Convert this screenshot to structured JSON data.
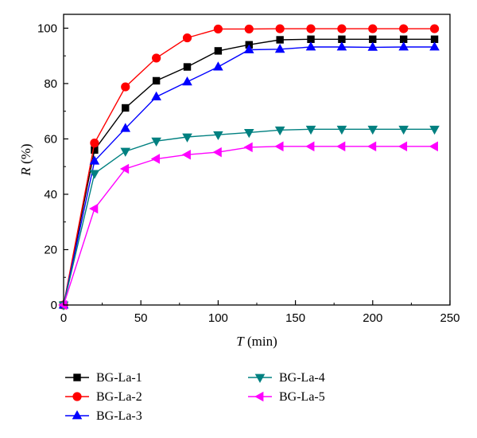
{
  "chart_data": {
    "type": "line",
    "xlabel_var": "T",
    "xlabel_unit": " (min)",
    "ylabel_var": "R",
    "ylabel_unit": " (%)",
    "xlim": [
      0,
      250
    ],
    "ylim": [
      0,
      105
    ],
    "xticks": [
      0,
      50,
      100,
      150,
      200,
      250
    ],
    "yticks": [
      0,
      20,
      40,
      60,
      80,
      100
    ],
    "grid": false,
    "legend_position": "bottom",
    "x": [
      0,
      20,
      40,
      60,
      80,
      100,
      120,
      140,
      160,
      180,
      200,
      220,
      240
    ],
    "series": [
      {
        "name": "BG-La-1",
        "color": "#000000",
        "marker": "square",
        "values": [
          0,
          56,
          71.2,
          81,
          86,
          91.8,
          94,
          95.8,
          96,
          96,
          96,
          96,
          96
        ]
      },
      {
        "name": "BG-La-2",
        "color": "#ff0000",
        "marker": "circle",
        "values": [
          0,
          58.5,
          78.8,
          89.2,
          96.5,
          99.7,
          99.7,
          99.8,
          99.8,
          99.8,
          99.8,
          99.8,
          99.8
        ]
      },
      {
        "name": "BG-La-3",
        "color": "#0000ff",
        "marker": "triangle-up",
        "values": [
          0,
          52,
          63.8,
          75.2,
          80.6,
          86,
          92.2,
          92.4,
          93.2,
          93.2,
          93.1,
          93.2,
          93.2
        ]
      },
      {
        "name": "BG-La-4",
        "color": "#008080",
        "marker": "triangle-down",
        "values": [
          0,
          47.5,
          55.5,
          59.2,
          60.7,
          61.5,
          62.3,
          63.2,
          63.5,
          63.5,
          63.5,
          63.5,
          63.5
        ]
      },
      {
        "name": "BG-La-5",
        "color": "#ff00ff",
        "marker": "triangle-left",
        "values": [
          0,
          34.8,
          49.2,
          52.8,
          54.3,
          55.2,
          57,
          57.3,
          57.3,
          57.3,
          57.3,
          57.3,
          57.3
        ]
      }
    ]
  }
}
